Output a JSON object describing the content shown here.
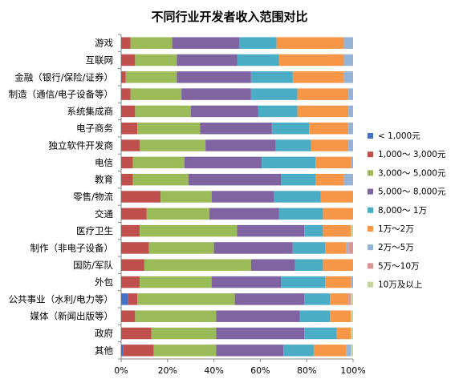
{
  "chart_data": {
    "type": "bar",
    "orientation": "horizontal",
    "stacked": "percent",
    "title": "不同行业开发者收入范围对比",
    "xlim": [
      0,
      100
    ],
    "x_ticks": [
      "0%",
      "20%",
      "40%",
      "60%",
      "80%",
      "100%"
    ],
    "grid": false,
    "legend_position": "right",
    "categories": [
      "游戏",
      "互联网",
      "金融（银行/保险/证券）",
      "制造（通信/电子设备等）",
      "系统集成商",
      "电子商务",
      "独立软件开发商",
      "电信",
      "教育",
      "零售/物流",
      "交通",
      "医疗卫生",
      "制作（非电子设备）",
      "国防/军队",
      "外包",
      "公共事业（水利/电力等）",
      "媒体（新闻出版等）",
      "政府",
      "其他"
    ],
    "series": [
      {
        "name": "< 1,000元",
        "color": "#4472C4",
        "values": [
          0,
          0,
          0,
          0,
          0,
          0,
          0,
          0,
          0,
          0,
          0,
          0,
          0,
          0,
          0,
          3,
          0,
          0,
          1
        ]
      },
      {
        "name": "1,000～ 3,000元",
        "color": "#C0504D",
        "values": [
          4,
          6,
          2,
          4,
          6,
          7,
          8,
          5,
          5,
          17,
          11,
          8,
          12,
          10,
          8,
          4,
          6,
          13,
          13
        ]
      },
      {
        "name": "3,000～ 5,000元",
        "color": "#9BBB59",
        "values": [
          18,
          18,
          22,
          22,
          24,
          27,
          28,
          22,
          24,
          22,
          27,
          42,
          28,
          46,
          31,
          42,
          35,
          28,
          27
        ]
      },
      {
        "name": "5,000～ 8,000元",
        "color": "#8064A2",
        "values": [
          29,
          26,
          32,
          30,
          29,
          31,
          30,
          33,
          40,
          27,
          30,
          29,
          34,
          19,
          30,
          30,
          36,
          38,
          29
        ]
      },
      {
        "name": "8,000～ 1万",
        "color": "#4BACC6",
        "values": [
          16,
          18,
          18,
          20,
          17,
          16,
          15,
          23,
          15,
          20,
          19,
          8,
          14,
          12,
          19,
          11,
          13,
          14,
          13
        ]
      },
      {
        "name": "1万～2万",
        "color": "#F79646",
        "values": [
          29,
          28,
          22,
          22,
          22,
          17,
          16,
          15,
          12,
          14,
          13,
          12,
          9,
          13,
          11,
          8,
          9,
          6,
          14
        ]
      },
      {
        "name": "2万～5万",
        "color": "#95B3D7",
        "values": [
          4,
          4,
          4,
          2,
          2,
          2,
          2,
          1,
          4,
          0,
          0,
          0,
          1,
          0,
          1,
          0,
          0,
          0,
          2
        ]
      },
      {
        "name": "5万～10万",
        "color": "#D99694",
        "values": [
          0,
          0,
          0,
          0,
          0,
          0,
          0,
          0,
          0,
          0,
          0,
          0,
          2,
          0,
          0,
          1,
          0,
          0,
          0
        ]
      },
      {
        "name": "10万及以上",
        "color": "#C3D69B",
        "values": [
          0,
          0,
          0,
          0,
          0,
          0,
          0,
          0,
          0,
          0,
          0,
          1,
          0,
          0,
          0,
          1,
          1,
          1,
          1
        ]
      }
    ]
  }
}
